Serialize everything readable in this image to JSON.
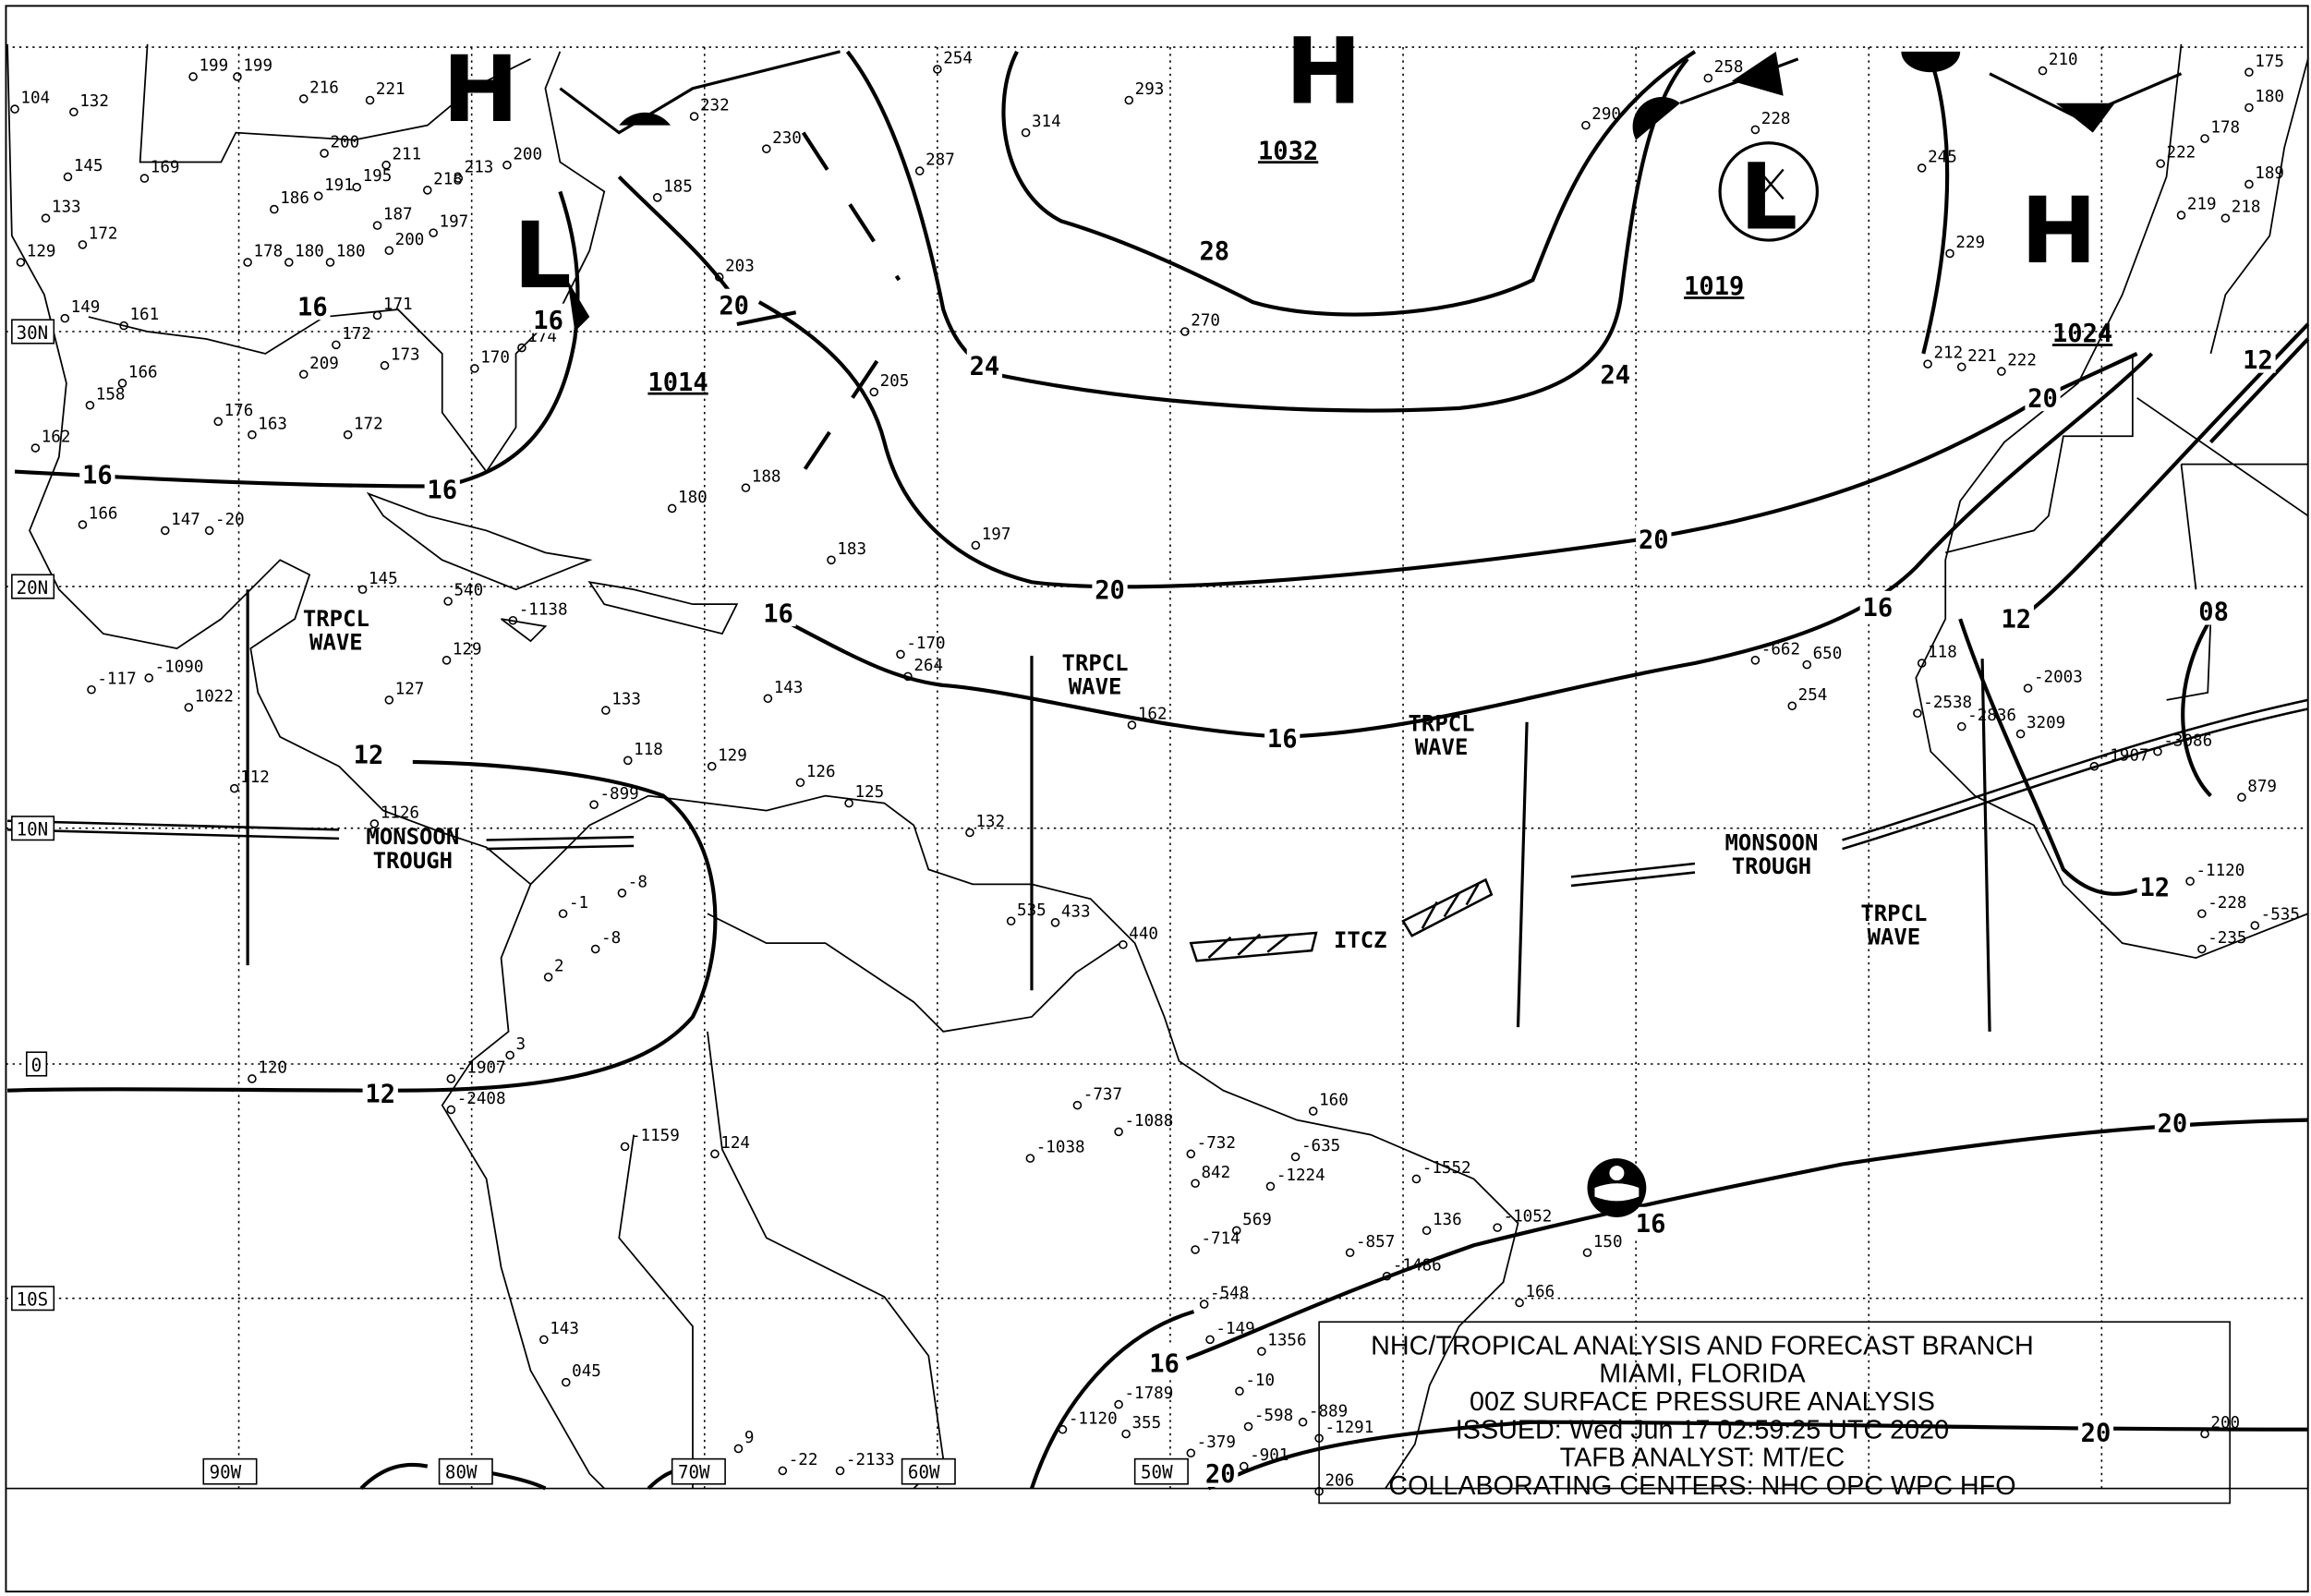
{
  "title_block": {
    "lines": [
      "NHC/TROPICAL ANALYSIS AND FORECAST BRANCH",
      "MIAMI, FLORIDA",
      "00Z SURFACE PRESSURE ANALYSIS",
      "ISSUED: Wed Jun 17 02:59:25 UTC 2020",
      "TAFB ANALYST: MT/EC",
      "COLLABORATING CENTERS: NHC OPC WPC HFO"
    ]
  },
  "grid_labels": {
    "lat": [
      "30N",
      "20N",
      "10N",
      "0",
      "10S"
    ],
    "lon": [
      "90W",
      "80W",
      "70W",
      "60W",
      "50W"
    ]
  },
  "pressure_centers": [
    {
      "type": "H",
      "pressure": "1032"
    },
    {
      "type": "L",
      "pressure": "1019"
    },
    {
      "type": "H",
      "pressure": "1024"
    },
    {
      "type": "H",
      "pressure": ""
    },
    {
      "type": "L",
      "pressure": "1014"
    }
  ],
  "isobar_labels": [
    "28",
    "24",
    "24",
    "20",
    "20",
    "20",
    "20",
    "16",
    "16",
    "16",
    "16",
    "16",
    "16",
    "16",
    "12",
    "12",
    "12",
    "12",
    "12",
    "08",
    "20",
    "20",
    "16",
    "16",
    "20"
  ],
  "features": {
    "tropical_wave": "TRPCL WAVE",
    "monsoon_trough": "MONSOON TROUGH",
    "itcz": "ITCZ"
  },
  "feature_labels": [
    "TRPCL|WAVE",
    "TRPCL|WAVE",
    "TRPCL|WAVE",
    "TRPCL|WAVE",
    "MONSOON|TROUGH",
    "MONSOON|TROUGH",
    "ITCZ"
  ],
  "stations": [
    "104",
    "132",
    "145",
    "169",
    "133",
    "172",
    "129",
    "149",
    "161",
    "166",
    "158",
    "176",
    "163",
    "172",
    "180",
    "188",
    "183",
    "197",
    "205",
    "230",
    "287",
    "254",
    "314",
    "293",
    "290",
    "258",
    "228",
    "245",
    "229",
    "210",
    "222",
    "219",
    "218",
    "189",
    "180",
    "175",
    "178",
    "270",
    "212",
    "221",
    "222",
    "203",
    "185",
    "232",
    "145",
    "540",
    "-1138",
    "129",
    "127",
    "133",
    "118",
    "129",
    "143",
    "126",
    "125",
    "132",
    "162",
    "-170",
    "264",
    "-662",
    "650",
    "254",
    "118",
    "-117",
    "-1090",
    "1022",
    "112",
    "1126",
    "-899",
    "-1",
    "-8",
    "-8",
    "2",
    "3",
    "535",
    "433",
    "440",
    "-1159",
    "124",
    "-1038",
    "-737",
    "-1088",
    "-732",
    "842",
    "-1224",
    "-635",
    "160",
    "-1552",
    "136",
    "-1052",
    "569",
    "-714",
    "-857",
    "-1486",
    "150",
    "166",
    "-548",
    "-149",
    "1356",
    "-10",
    "-598",
    "-889",
    "-1789",
    "-1120",
    "355",
    "-379",
    "-901",
    "-1291",
    "206",
    "143",
    "045",
    "-22",
    "-2133",
    "9",
    "200",
    "120",
    "-1907",
    "-2408",
    "-3086",
    "-1907",
    "3209",
    "-2003",
    "-2836",
    "-2538",
    "879",
    "-1120",
    "-228",
    "-235",
    "-535",
    "199",
    "199",
    "216",
    "221",
    "200",
    "211",
    "218",
    "213",
    "200",
    "186",
    "191",
    "195",
    "187",
    "197",
    "200",
    "178",
    "180",
    "180",
    "171",
    "172",
    "173",
    "170",
    "174",
    "209",
    "162",
    "166",
    "147",
    "-20"
  ],
  "colors": {
    "ink": "#000000",
    "background": "#ffffff"
  }
}
